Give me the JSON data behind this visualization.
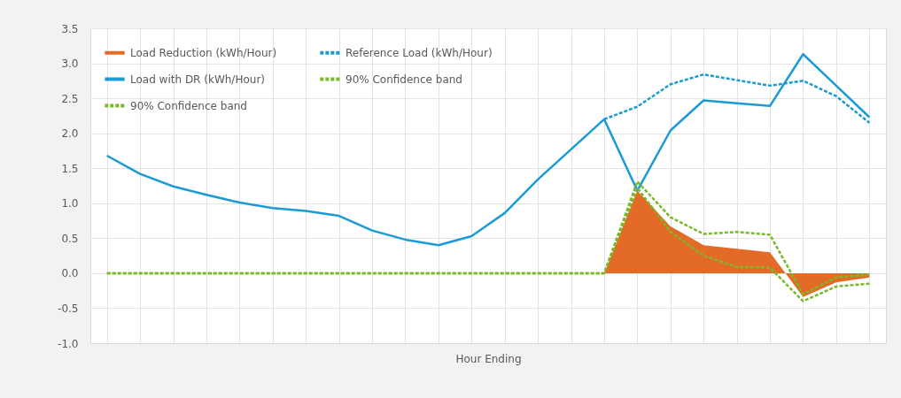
{
  "chart_data": {
    "type": "line",
    "xlabel": "Hour Ending",
    "categories": [
      null,
      null,
      null,
      null,
      null,
      null,
      null,
      null,
      null,
      null,
      null,
      null,
      null,
      null,
      null,
      null,
      null,
      null,
      null,
      null,
      null,
      null,
      null,
      null
    ],
    "ylim": [
      -1,
      3.5
    ],
    "yticks": [
      {
        "value": -1,
        "label": "-1.0"
      },
      {
        "value": -0.5,
        "label": "-0.5"
      },
      {
        "value": 0,
        "label": "0.0"
      },
      {
        "value": 0.5,
        "label": "0.5"
      },
      {
        "value": 1,
        "label": "1.0"
      },
      {
        "value": 1.5,
        "label": "1.5"
      },
      {
        "value": 2,
        "label": "2.0"
      },
      {
        "value": 2.5,
        "label": "2.5"
      },
      {
        "value": 3,
        "label": "3.0"
      },
      {
        "value": 3.5,
        "label": "3.5"
      }
    ],
    "grid": true,
    "legend": "top left",
    "tick_labels": "y",
    "series": [
      {
        "name": "Load Reduction (kWh/Hour)",
        "type": "area",
        "color": "#e46a27",
        "values": [
          0,
          0,
          0,
          0,
          0,
          0,
          0,
          0,
          0,
          0,
          0,
          0,
          0,
          0,
          0,
          0,
          1.18,
          0.67,
          0.4,
          0.35,
          0.3,
          -0.34,
          -0.13,
          -0.06
        ]
      },
      {
        "name": "Reference Load (kWh/Hour)",
        "line_style": "dashed",
        "color": "#1b9ad6",
        "values": [
          null,
          null,
          null,
          null,
          null,
          null,
          null,
          null,
          null,
          null,
          null,
          null,
          null,
          null,
          null,
          2.2,
          2.38,
          2.7,
          2.84,
          2.76,
          2.68,
          2.75,
          2.53,
          2.15
        ]
      },
      {
        "name": "Load with DR (kWh/Hour)",
        "line_style": "solid",
        "color": "#1b9ad6",
        "values": [
          1.68,
          1.42,
          1.24,
          1.12,
          1.01,
          0.93,
          0.89,
          0.82,
          0.61,
          0.48,
          0.4,
          0.53,
          0.86,
          1.34,
          1.77,
          2.2,
          1.18,
          2.04,
          2.47,
          2.43,
          2.39,
          3.13,
          2.68,
          2.23
        ]
      },
      {
        "name": "90% Confidence band",
        "line_style": "dashed",
        "color": "#7ab929",
        "values": [
          0,
          0,
          0,
          0,
          0,
          0,
          0,
          0,
          0,
          0,
          0,
          0,
          0,
          0,
          0,
          0,
          1.31,
          0.8,
          0.56,
          0.59,
          0.55,
          -0.3,
          -0.06,
          -0.02
        ]
      },
      {
        "name": "90% Confidence band",
        "line_style": "dashed",
        "color": "#7ab929",
        "values": [
          0,
          0,
          0,
          0,
          0,
          0,
          0,
          0,
          0,
          0,
          0,
          0,
          0,
          0,
          0,
          0,
          1.22,
          0.59,
          0.25,
          0.09,
          0.08,
          -0.4,
          -0.19,
          -0.15
        ]
      }
    ]
  }
}
